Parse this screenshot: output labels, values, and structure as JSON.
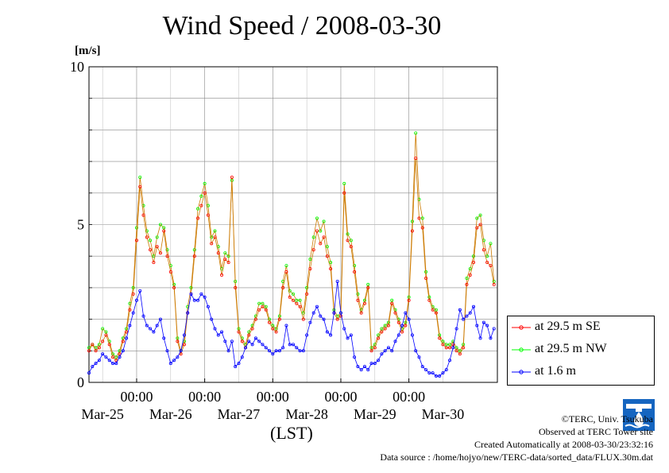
{
  "chart_data": {
    "type": "line",
    "title": "Wind Speed / 2008-03-30",
    "ylabel": "[m/s]",
    "xlabel": "(LST)",
    "ylim": [
      0,
      10
    ],
    "y_ticks": [
      0,
      5,
      10
    ],
    "x_range_days": [
      "2008-03-24 12:00",
      "2008-03-30 24:00"
    ],
    "x_tick_labels": [
      "00:00",
      "00:00",
      "00:00",
      "00:00",
      "00:00"
    ],
    "x_date_labels": [
      "Mar-25",
      "Mar-26",
      "Mar-27",
      "Mar-28",
      "Mar-29",
      "Mar-30"
    ],
    "grid": true,
    "legend_position": "right",
    "series": [
      {
        "name": "at 29.5 m SE",
        "color": "#ff0000",
        "x": [
          0.0,
          0.25,
          0.5,
          0.75,
          1.0,
          1.25,
          1.5,
          1.75,
          2.0,
          2.25,
          2.5,
          2.75,
          3.0,
          3.25,
          3.5,
          3.75,
          4.0,
          4.25,
          4.5,
          4.75,
          5.0,
          5.25,
          5.5,
          5.75,
          6.0,
          6.25,
          6.5,
          6.75,
          7.0,
          7.25,
          7.5,
          7.75,
          8.0,
          8.25,
          8.5,
          8.75,
          9.0,
          9.25,
          9.5,
          9.75,
          10.0,
          10.25,
          10.5,
          10.75,
          11.0,
          11.25,
          11.5,
          11.75,
          12.0,
          12.25,
          12.5,
          12.75,
          13.0,
          13.25,
          13.5,
          13.75,
          14.0,
          14.25,
          14.5,
          14.75,
          15.0,
          15.25,
          15.5,
          15.75,
          16.0,
          16.25,
          16.5,
          16.75,
          17.0,
          17.25,
          17.5,
          17.75,
          18.0,
          18.25,
          18.5,
          18.75,
          19.0,
          19.25,
          19.5,
          19.75,
          20.0,
          20.25,
          20.5,
          20.75,
          21.0,
          21.25,
          21.5,
          21.75,
          22.0,
          22.25,
          22.5,
          22.75,
          23.0,
          23.25,
          23.5,
          23.75,
          24.0,
          24.25,
          24.5,
          24.75,
          25.0,
          25.25,
          25.5,
          25.75,
          26.0,
          26.25,
          26.5,
          26.75,
          27.0,
          27.25,
          27.5,
          27.75,
          28.0,
          28.25,
          28.5,
          28.75,
          29.0,
          29.25,
          29.5,
          29.75
        ],
        "values": [
          1.0,
          1.2,
          1.0,
          1.1,
          1.3,
          1.5,
          1.2,
          0.8,
          0.7,
          0.9,
          1.3,
          1.6,
          2.3,
          2.8,
          4.5,
          6.2,
          5.3,
          4.6,
          4.2,
          3.8,
          4.3,
          4.1,
          4.8,
          4.0,
          3.5,
          3.0,
          1.3,
          0.9,
          1.2,
          2.2,
          2.8,
          4.0,
          5.2,
          5.6,
          6.0,
          5.3,
          4.4,
          4.6,
          4.1,
          3.4,
          3.9,
          3.8,
          6.5,
          3.0,
          1.6,
          1.3,
          1.1,
          1.5,
          1.7,
          2.0,
          2.3,
          2.4,
          2.3,
          1.9,
          1.7,
          1.6,
          2.0,
          3.0,
          3.5,
          2.7,
          2.6,
          2.5,
          2.4,
          2.0,
          2.8,
          3.6,
          4.2,
          4.8,
          4.4,
          4.6,
          4.0,
          3.6,
          2.2,
          2.0,
          2.1,
          6.0,
          4.5,
          4.3,
          3.5,
          2.6,
          2.2,
          2.5,
          3.0,
          1.0,
          1.1,
          1.4,
          1.6,
          1.7,
          1.8,
          2.5,
          2.2,
          1.9,
          1.6,
          1.8,
          2.6,
          4.8,
          7.1,
          5.2,
          4.9,
          3.3,
          2.6,
          2.3,
          2.2,
          1.4,
          1.2,
          1.1,
          1.1,
          1.2,
          1.0,
          0.9,
          1.1,
          3.1,
          3.4,
          3.8,
          4.9,
          5.0,
          4.2,
          3.8,
          3.7,
          3.1
        ]
      },
      {
        "name": "at 29.5 m NW",
        "color": "#00ff00",
        "x": [
          0.0,
          0.25,
          0.5,
          0.75,
          1.0,
          1.25,
          1.5,
          1.75,
          2.0,
          2.25,
          2.5,
          2.75,
          3.0,
          3.25,
          3.5,
          3.75,
          4.0,
          4.25,
          4.5,
          4.75,
          5.0,
          5.25,
          5.5,
          5.75,
          6.0,
          6.25,
          6.5,
          6.75,
          7.0,
          7.25,
          7.5,
          7.75,
          8.0,
          8.25,
          8.5,
          8.75,
          9.0,
          9.25,
          9.5,
          9.75,
          10.0,
          10.25,
          10.5,
          10.75,
          11.0,
          11.25,
          11.5,
          11.75,
          12.0,
          12.25,
          12.5,
          12.75,
          13.0,
          13.25,
          13.5,
          13.75,
          14.0,
          14.25,
          14.5,
          14.75,
          15.0,
          15.25,
          15.5,
          15.75,
          16.0,
          16.25,
          16.5,
          16.75,
          17.0,
          17.25,
          17.5,
          17.75,
          18.0,
          18.25,
          18.5,
          18.75,
          19.0,
          19.25,
          19.5,
          19.75,
          20.0,
          20.25,
          20.5,
          20.75,
          21.0,
          21.25,
          21.5,
          21.75,
          22.0,
          22.25,
          22.5,
          22.75,
          23.0,
          23.25,
          23.5,
          23.75,
          24.0,
          24.25,
          24.5,
          24.75,
          25.0,
          25.25,
          25.5,
          25.75,
          26.0,
          26.25,
          26.5,
          26.75,
          27.0,
          27.25,
          27.5,
          27.75,
          28.0,
          28.25,
          28.5,
          28.75,
          29.0,
          29.25,
          29.5,
          29.75
        ],
        "values": [
          1.1,
          1.2,
          1.1,
          1.2,
          1.7,
          1.6,
          1.3,
          0.9,
          0.8,
          1.0,
          1.4,
          1.7,
          2.5,
          3.0,
          4.9,
          6.5,
          5.6,
          4.8,
          4.5,
          4.0,
          4.6,
          5.0,
          4.9,
          4.2,
          3.7,
          3.1,
          1.4,
          1.0,
          1.3,
          2.4,
          3.0,
          4.2,
          5.5,
          5.9,
          6.3,
          5.6,
          4.6,
          4.8,
          4.3,
          3.6,
          4.1,
          4.0,
          6.4,
          3.2,
          1.7,
          1.4,
          1.2,
          1.6,
          1.8,
          2.1,
          2.5,
          2.5,
          2.4,
          2.0,
          1.8,
          1.7,
          2.1,
          3.2,
          3.7,
          2.9,
          2.8,
          2.6,
          2.6,
          2.2,
          3.0,
          3.9,
          4.6,
          5.2,
          4.8,
          5.1,
          4.3,
          3.8,
          2.3,
          2.1,
          2.2,
          6.3,
          4.7,
          4.5,
          3.7,
          2.8,
          2.3,
          2.6,
          3.1,
          1.1,
          1.2,
          1.5,
          1.7,
          1.8,
          1.9,
          2.6,
          2.3,
          2.0,
          1.7,
          1.9,
          2.7,
          5.1,
          7.9,
          5.8,
          5.2,
          3.5,
          2.7,
          2.4,
          2.3,
          1.5,
          1.3,
          1.2,
          1.2,
          1.3,
          1.1,
          1.0,
          1.2,
          3.3,
          3.6,
          4.0,
          5.2,
          5.3,
          4.5,
          4.0,
          4.4,
          3.2
        ]
      },
      {
        "name": "at 1.6 m",
        "color": "#0000ff",
        "x": [
          0.0,
          0.25,
          0.5,
          0.75,
          1.0,
          1.25,
          1.5,
          1.75,
          2.0,
          2.25,
          2.5,
          2.75,
          3.0,
          3.25,
          3.5,
          3.75,
          4.0,
          4.25,
          4.5,
          4.75,
          5.0,
          5.25,
          5.5,
          5.75,
          6.0,
          6.25,
          6.5,
          6.75,
          7.0,
          7.25,
          7.5,
          7.75,
          8.0,
          8.25,
          8.5,
          8.75,
          9.0,
          9.25,
          9.5,
          9.75,
          10.0,
          10.25,
          10.5,
          10.75,
          11.0,
          11.25,
          11.5,
          11.75,
          12.0,
          12.25,
          12.5,
          12.75,
          13.0,
          13.25,
          13.5,
          13.75,
          14.0,
          14.25,
          14.5,
          14.75,
          15.0,
          15.25,
          15.5,
          15.75,
          16.0,
          16.25,
          16.5,
          16.75,
          17.0,
          17.25,
          17.5,
          17.75,
          18.0,
          18.25,
          18.5,
          18.75,
          19.0,
          19.25,
          19.5,
          19.75,
          20.0,
          20.25,
          20.5,
          20.75,
          21.0,
          21.25,
          21.5,
          21.75,
          22.0,
          22.25,
          22.5,
          22.75,
          23.0,
          23.25,
          23.5,
          23.75,
          24.0,
          24.25,
          24.5,
          24.75,
          25.0,
          25.25,
          25.5,
          25.75,
          26.0,
          26.25,
          26.5,
          26.75,
          27.0,
          27.25,
          27.5,
          27.75,
          28.0,
          28.25,
          28.5,
          28.75,
          29.0,
          29.25,
          29.5,
          29.75
        ],
        "values": [
          0.3,
          0.5,
          0.6,
          0.7,
          0.9,
          0.8,
          0.7,
          0.6,
          0.6,
          0.8,
          1.0,
          1.4,
          1.8,
          2.2,
          2.6,
          2.9,
          2.1,
          1.8,
          1.7,
          1.6,
          1.8,
          2.0,
          1.4,
          1.0,
          0.6,
          0.7,
          0.8,
          1.0,
          1.5,
          2.2,
          2.8,
          2.6,
          2.6,
          2.8,
          2.7,
          2.4,
          2.0,
          1.7,
          1.5,
          1.6,
          1.3,
          1.0,
          1.3,
          0.5,
          0.6,
          0.8,
          1.1,
          1.3,
          1.2,
          1.4,
          1.3,
          1.2,
          1.1,
          1.0,
          0.9,
          1.0,
          1.0,
          1.1,
          1.8,
          1.2,
          1.2,
          1.1,
          1.0,
          1.0,
          1.5,
          1.9,
          2.2,
          2.4,
          2.1,
          2.0,
          1.6,
          1.5,
          2.2,
          3.2,
          2.2,
          1.7,
          1.4,
          1.5,
          0.8,
          0.5,
          0.4,
          0.5,
          0.4,
          0.6,
          0.6,
          0.7,
          0.9,
          1.0,
          1.1,
          1.0,
          1.3,
          1.5,
          1.8,
          2.2,
          2.0,
          1.5,
          1.0,
          0.8,
          0.5,
          0.4,
          0.3,
          0.3,
          0.2,
          0.2,
          0.3,
          0.4,
          0.7,
          1.1,
          1.7,
          2.3,
          2.0,
          2.1,
          2.2,
          2.4,
          1.8,
          1.4,
          1.9,
          1.8,
          1.4,
          1.7
        ]
      }
    ]
  },
  "page": {
    "unit_label": "[m/s]",
    "xaxis_label": "(LST)",
    "credits": [
      "©TERC, Univ. Tsukuba",
      "Observed at TERC Tower site",
      "Created Automatically at 2008-03-30/23:32:16",
      "Data source : /home/hojyo/new/TERC-data/sorted_data/FLUX.30m.dat"
    ]
  }
}
